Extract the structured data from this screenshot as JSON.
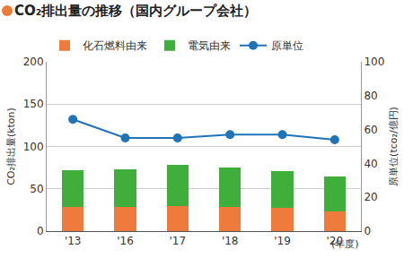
{
  "chart_data": {
    "type": "bar",
    "title": "CO₂排出量の推移（国内グループ会社）",
    "xlabel": "(年度)",
    "ylabel": "CO₂排出量(kton)",
    "y2label": "原単位(tco₂/億円)",
    "categories": [
      "'13",
      "'16",
      "'17",
      "'18",
      "'19",
      "'20"
    ],
    "stacked": true,
    "grid": true,
    "legend": "top",
    "series": [
      {
        "name": "化石燃料由来",
        "type": "bar",
        "color": "#ee7a3c",
        "values": [
          29,
          29,
          30,
          29,
          27,
          23
        ]
      },
      {
        "name": "電気由来",
        "type": "bar",
        "color": "#3fae3a",
        "values": [
          43,
          44,
          48,
          46,
          44,
          42
        ]
      },
      {
        "name": "原単位",
        "type": "line",
        "color": "#1f73b7",
        "marker": "circle",
        "axis": "y2",
        "values": [
          66,
          55,
          55,
          57,
          57,
          54
        ]
      }
    ],
    "ylim": [
      0,
      200
    ],
    "yticks": [
      0,
      50,
      100,
      150,
      200
    ],
    "y2lim": [
      0,
      100
    ],
    "y2ticks": [
      0,
      20,
      40,
      60,
      80,
      100
    ]
  }
}
